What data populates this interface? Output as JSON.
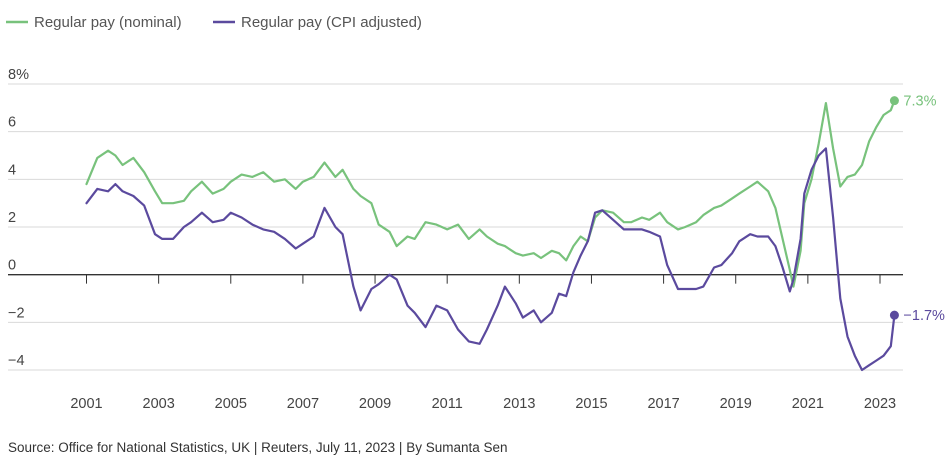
{
  "legend": [
    {
      "label": "Regular pay (nominal)",
      "color": "#78c27c"
    },
    {
      "label": "Regular pay (CPI adjusted)",
      "color": "#5b4a9e"
    }
  ],
  "source": "Source: Office for National Statistics, UK | Reuters, July 11, 2023 | By Sumanta Sen",
  "chart_data": {
    "type": "line",
    "title": "",
    "xlabel": "",
    "ylabel": "",
    "xlim": [
      2000.7,
      2023.8
    ],
    "ylim": [
      -4.2,
      8.3
    ],
    "x_ticks": [
      2001,
      2003,
      2005,
      2007,
      2009,
      2011,
      2013,
      2015,
      2017,
      2019,
      2021,
      2023
    ],
    "y_ticks": [
      {
        "value": 8,
        "label": "8%"
      },
      {
        "value": 6,
        "label": "6"
      },
      {
        "value": 4,
        "label": "4"
      },
      {
        "value": 2,
        "label": "2"
      },
      {
        "value": 0,
        "label": "0"
      },
      {
        "value": -2,
        "label": "−2"
      },
      {
        "value": -4,
        "label": "−4"
      }
    ],
    "grid": "horizontal",
    "legend_position": "top-left",
    "end_labels": [
      {
        "series": 0,
        "text": "7.3%"
      },
      {
        "series": 1,
        "text": "−1.7%"
      }
    ],
    "series": [
      {
        "name": "Regular pay (nominal)",
        "color": "#78c27c",
        "x": [
          2001.0,
          2001.3,
          2001.6,
          2001.8,
          2002.0,
          2002.3,
          2002.6,
          2002.9,
          2003.1,
          2003.4,
          2003.7,
          2003.9,
          2004.2,
          2004.5,
          2004.8,
          2005.0,
          2005.3,
          2005.6,
          2005.9,
          2006.2,
          2006.5,
          2006.8,
          2007.0,
          2007.3,
          2007.6,
          2007.9,
          2008.1,
          2008.4,
          2008.6,
          2008.9,
          2009.1,
          2009.4,
          2009.6,
          2009.9,
          2010.1,
          2010.4,
          2010.7,
          2011.0,
          2011.3,
          2011.6,
          2011.9,
          2012.1,
          2012.4,
          2012.6,
          2012.9,
          2013.1,
          2013.4,
          2013.6,
          2013.9,
          2014.1,
          2014.3,
          2014.5,
          2014.7,
          2014.9,
          2015.1,
          2015.3,
          2015.6,
          2015.9,
          2016.1,
          2016.4,
          2016.6,
          2016.9,
          2017.1,
          2017.4,
          2017.6,
          2017.9,
          2018.1,
          2018.4,
          2018.6,
          2018.9,
          2019.1,
          2019.4,
          2019.6,
          2019.9,
          2020.1,
          2020.3,
          2020.5,
          2020.6,
          2020.8,
          2020.9,
          2021.1,
          2021.3,
          2021.5,
          2021.7,
          2021.9,
          2022.1,
          2022.3,
          2022.5,
          2022.7,
          2022.9,
          2023.1,
          2023.3,
          2023.4
        ],
        "y": [
          3.8,
          4.9,
          5.2,
          5.0,
          4.6,
          4.9,
          4.3,
          3.5,
          3.0,
          3.0,
          3.1,
          3.5,
          3.9,
          3.4,
          3.6,
          3.9,
          4.2,
          4.1,
          4.3,
          3.9,
          4.0,
          3.6,
          3.9,
          4.1,
          4.7,
          4.1,
          4.4,
          3.6,
          3.3,
          3.0,
          2.1,
          1.8,
          1.2,
          1.6,
          1.5,
          2.2,
          2.1,
          1.9,
          2.1,
          1.5,
          1.9,
          1.6,
          1.3,
          1.2,
          0.9,
          0.8,
          0.9,
          0.7,
          1.0,
          0.9,
          0.6,
          1.2,
          1.6,
          1.4,
          2.4,
          2.7,
          2.6,
          2.2,
          2.2,
          2.4,
          2.3,
          2.6,
          2.2,
          1.9,
          2.0,
          2.2,
          2.5,
          2.8,
          2.9,
          3.2,
          3.4,
          3.7,
          3.9,
          3.5,
          2.8,
          1.5,
          0.2,
          -0.5,
          1.0,
          3.0,
          4.0,
          5.5,
          7.2,
          5.3,
          3.7,
          4.1,
          4.2,
          4.6,
          5.6,
          6.2,
          6.7,
          6.9,
          7.3
        ]
      },
      {
        "name": "Regular pay (CPI adjusted)",
        "color": "#5b4a9e",
        "x": [
          2001.0,
          2001.3,
          2001.6,
          2001.8,
          2002.0,
          2002.3,
          2002.6,
          2002.9,
          2003.1,
          2003.4,
          2003.7,
          2003.9,
          2004.2,
          2004.5,
          2004.8,
          2005.0,
          2005.3,
          2005.6,
          2005.9,
          2006.2,
          2006.5,
          2006.8,
          2007.0,
          2007.3,
          2007.6,
          2007.9,
          2008.1,
          2008.4,
          2008.6,
          2008.9,
          2009.1,
          2009.4,
          2009.6,
          2009.9,
          2010.1,
          2010.4,
          2010.7,
          2011.0,
          2011.3,
          2011.6,
          2011.9,
          2012.1,
          2012.4,
          2012.6,
          2012.9,
          2013.1,
          2013.4,
          2013.6,
          2013.9,
          2014.1,
          2014.3,
          2014.5,
          2014.7,
          2014.9,
          2015.1,
          2015.3,
          2015.6,
          2015.9,
          2016.1,
          2016.4,
          2016.6,
          2016.9,
          2017.1,
          2017.4,
          2017.6,
          2017.9,
          2018.1,
          2018.4,
          2018.6,
          2018.9,
          2019.1,
          2019.4,
          2019.6,
          2019.9,
          2020.1,
          2020.3,
          2020.5,
          2020.6,
          2020.8,
          2020.9,
          2021.1,
          2021.3,
          2021.5,
          2021.7,
          2021.9,
          2022.1,
          2022.3,
          2022.5,
          2022.7,
          2022.9,
          2023.1,
          2023.3,
          2023.4
        ],
        "y": [
          3.0,
          3.6,
          3.5,
          3.8,
          3.5,
          3.3,
          2.9,
          1.7,
          1.5,
          1.5,
          2.0,
          2.2,
          2.6,
          2.2,
          2.3,
          2.6,
          2.4,
          2.1,
          1.9,
          1.8,
          1.5,
          1.1,
          1.3,
          1.6,
          2.8,
          2.0,
          1.7,
          -0.5,
          -1.5,
          -0.6,
          -0.4,
          0.0,
          -0.2,
          -1.3,
          -1.6,
          -2.2,
          -1.3,
          -1.5,
          -2.3,
          -2.8,
          -2.9,
          -2.3,
          -1.3,
          -0.5,
          -1.2,
          -1.8,
          -1.5,
          -2.0,
          -1.6,
          -0.8,
          -0.9,
          0.1,
          0.8,
          1.4,
          2.6,
          2.7,
          2.3,
          1.9,
          1.9,
          1.9,
          1.8,
          1.6,
          0.4,
          -0.6,
          -0.6,
          -0.6,
          -0.5,
          0.3,
          0.4,
          0.9,
          1.4,
          1.7,
          1.6,
          1.6,
          1.2,
          0.3,
          -0.7,
          -0.2,
          1.5,
          3.4,
          4.4,
          5.0,
          5.3,
          2.4,
          -1.0,
          -2.6,
          -3.4,
          -4.0,
          -3.8,
          -3.6,
          -3.4,
          -3.0,
          -1.7
        ]
      }
    ]
  }
}
